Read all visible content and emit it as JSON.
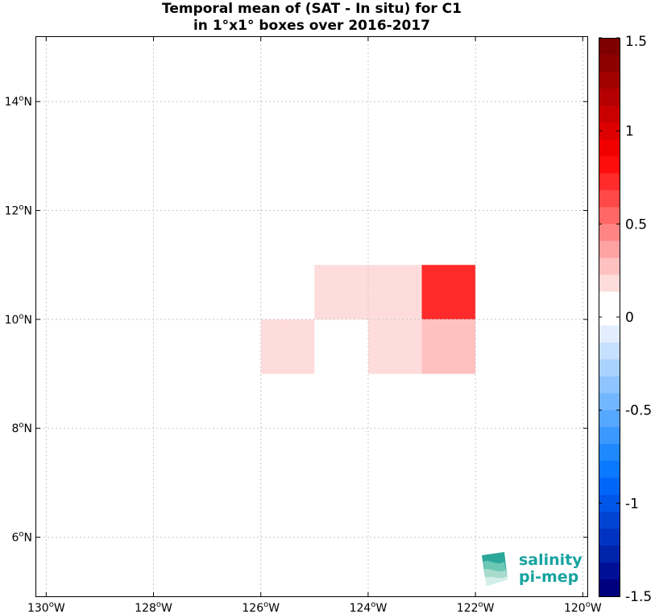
{
  "chart_data": {
    "type": "heatmap",
    "title": "Temporal mean of (SAT - In situ) for C1",
    "subtitle": "in 1°x1° boxes over 2016-2017",
    "xlim": [
      -130.2,
      -119.9
    ],
    "ylim": [
      4.9,
      15.2
    ],
    "x_ticks": [
      -130,
      -128,
      -126,
      -124,
      -122,
      -120
    ],
    "x_tick_labels": [
      "130°W",
      "128°W",
      "126°W",
      "124°W",
      "122°W",
      "120°W"
    ],
    "y_ticks": [
      6,
      8,
      10,
      12,
      14
    ],
    "y_tick_labels": [
      "6°N",
      "8°N",
      "10°N",
      "12°N",
      "14°N"
    ],
    "grid": true,
    "cells": [
      {
        "lon_min": -126,
        "lon_max": -125,
        "lat_min": 9,
        "lat_max": 10,
        "value": 0.15
      },
      {
        "lon_min": -124,
        "lon_max": -123,
        "lat_min": 9,
        "lat_max": 10,
        "value": 0.15
      },
      {
        "lon_min": -123,
        "lon_max": -122,
        "lat_min": 9,
        "lat_max": 10,
        "value": 0.3
      },
      {
        "lon_min": -125,
        "lon_max": -124,
        "lat_min": 10,
        "lat_max": 11,
        "value": 0.15
      },
      {
        "lon_min": -124,
        "lon_max": -123,
        "lat_min": 10,
        "lat_max": 11,
        "value": 0.15
      },
      {
        "lon_min": -123,
        "lon_max": -122,
        "lat_min": 10,
        "lat_max": 11,
        "value": 0.75
      }
    ],
    "colorbar": {
      "range": [
        -1.5,
        1.5
      ],
      "ticks": [
        1.5,
        1,
        0.5,
        0,
        -0.5,
        -1,
        -1.5
      ],
      "tick_labels": [
        "1.5",
        "1",
        "0.5",
        "0",
        "-0.5",
        "-1",
        "-1.5"
      ],
      "colors": [
        "#00007e",
        "#001096",
        "#0024aa",
        "#0034c0",
        "#0044d4",
        "#0056e8",
        "#0066fa",
        "#0a78ff",
        "#1e88ff",
        "#3a98ff",
        "#56a8ff",
        "#72b6ff",
        "#8ec4ff",
        "#aad2ff",
        "#c6e0ff",
        "#e2eefe",
        "#ffffff",
        "#ffffff",
        "#fedcdc",
        "#ffc0c0",
        "#ffa2a2",
        "#ff8484",
        "#ff6666",
        "#ff4848",
        "#ff2a2a",
        "#ff0c0c",
        "#f00000",
        "#dc0000",
        "#c80000",
        "#b40000",
        "#a00000",
        "#8c0000",
        "#7e0000"
      ]
    }
  },
  "logo": {
    "line1": "salinity",
    "line2": "pi-mep"
  }
}
